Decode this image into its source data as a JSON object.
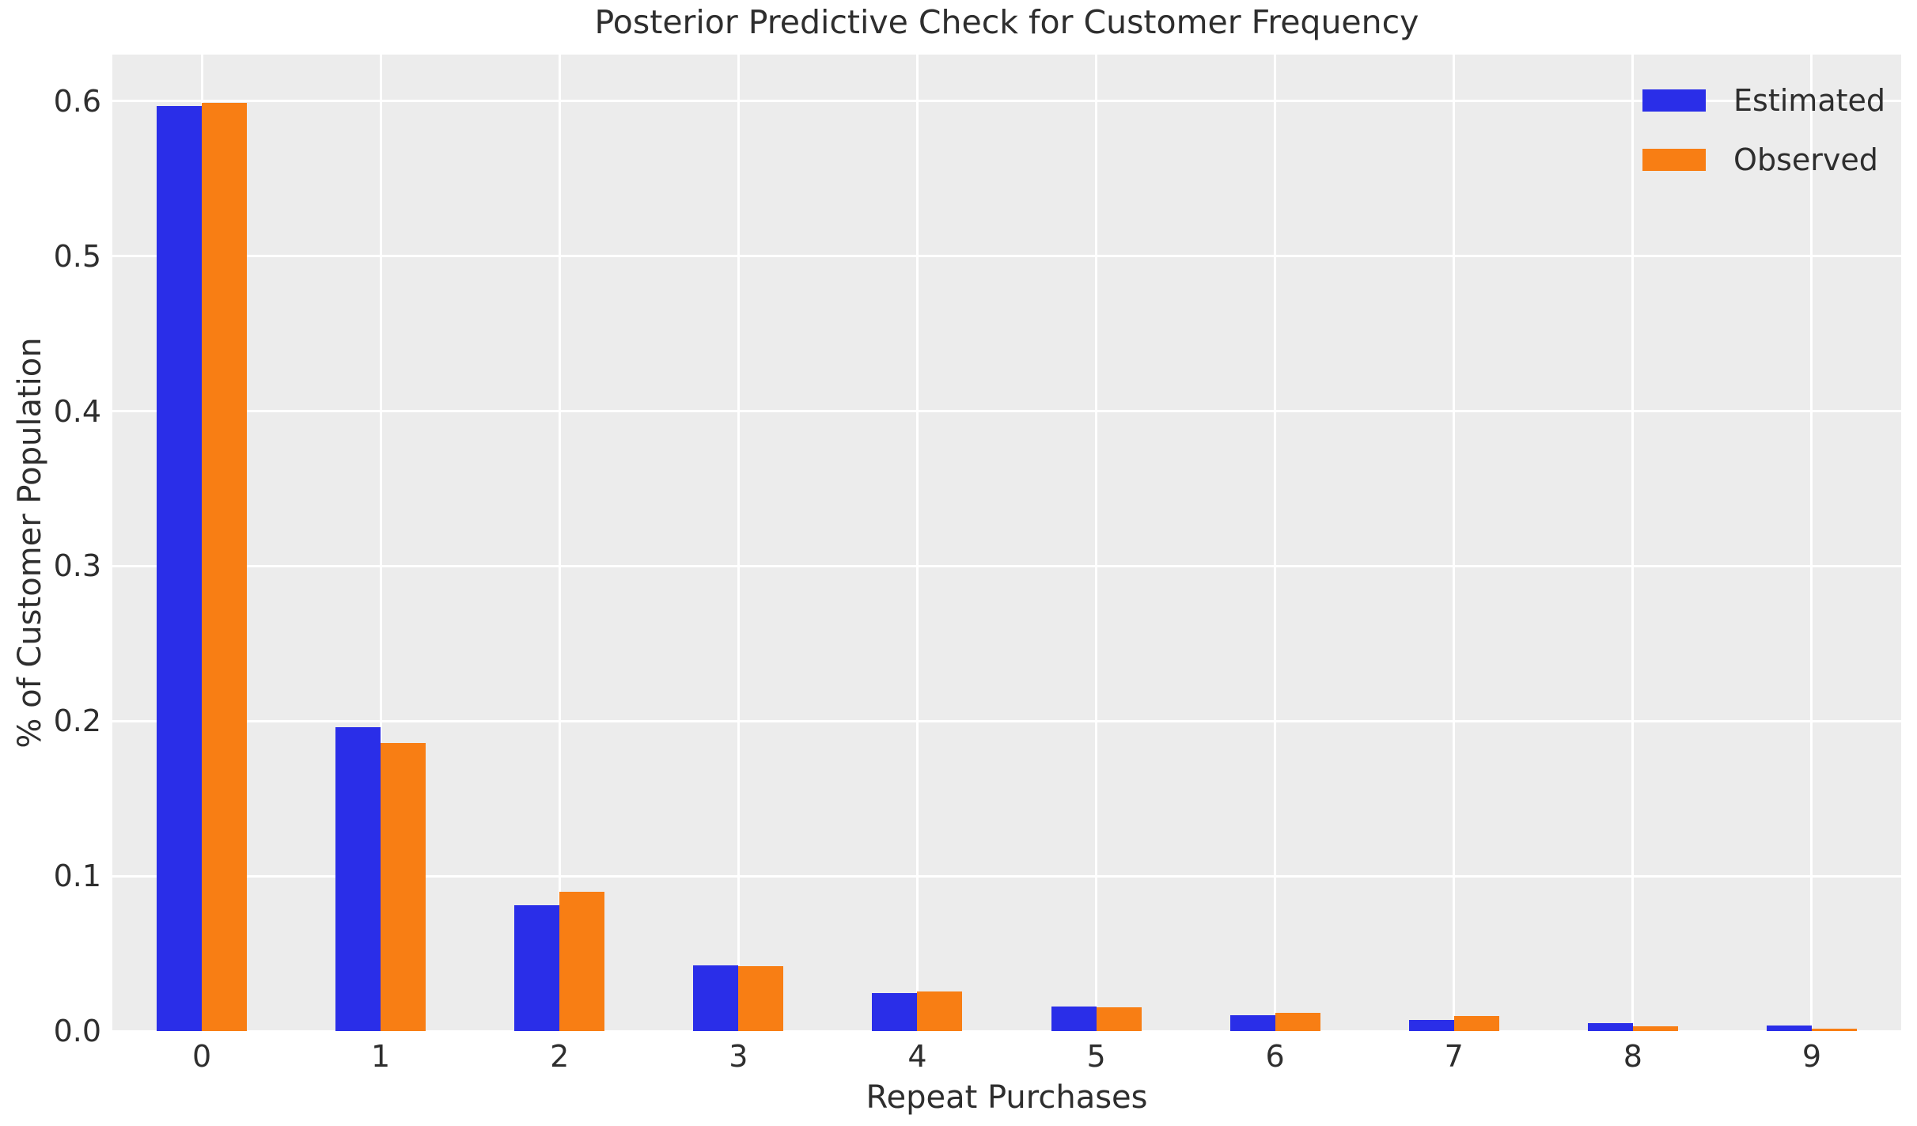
{
  "chart_data": {
    "type": "bar",
    "title": "Posterior Predictive Check for Customer Frequency",
    "xlabel": "Repeat Purchases",
    "ylabel": "% of Customer Population",
    "categories": [
      "0",
      "1",
      "2",
      "3",
      "4",
      "5",
      "6",
      "7",
      "8",
      "9"
    ],
    "series": [
      {
        "name": "Estimated",
        "color": "#2a2ee8",
        "values": [
          0.597,
          0.196,
          0.081,
          0.0423,
          0.0245,
          0.0158,
          0.0102,
          0.0071,
          0.0051,
          0.0036
        ]
      },
      {
        "name": "Observed",
        "color": "#f87e14",
        "values": [
          0.599,
          0.186,
          0.09,
          0.0418,
          0.0255,
          0.0153,
          0.0117,
          0.0095,
          0.0031,
          0.0015
        ]
      }
    ],
    "ylim": [
      0,
      0.63
    ],
    "yticks": [
      "0.0",
      "0.1",
      "0.2",
      "0.3",
      "0.4",
      "0.5",
      "0.6"
    ],
    "grid": true,
    "legend_position": "upper right"
  },
  "colors": {
    "plot_background": "#ececec",
    "gridline": "#ffffff",
    "text": "#2e2e2e",
    "estimated": "#2a2ee8",
    "observed": "#f87e14"
  }
}
